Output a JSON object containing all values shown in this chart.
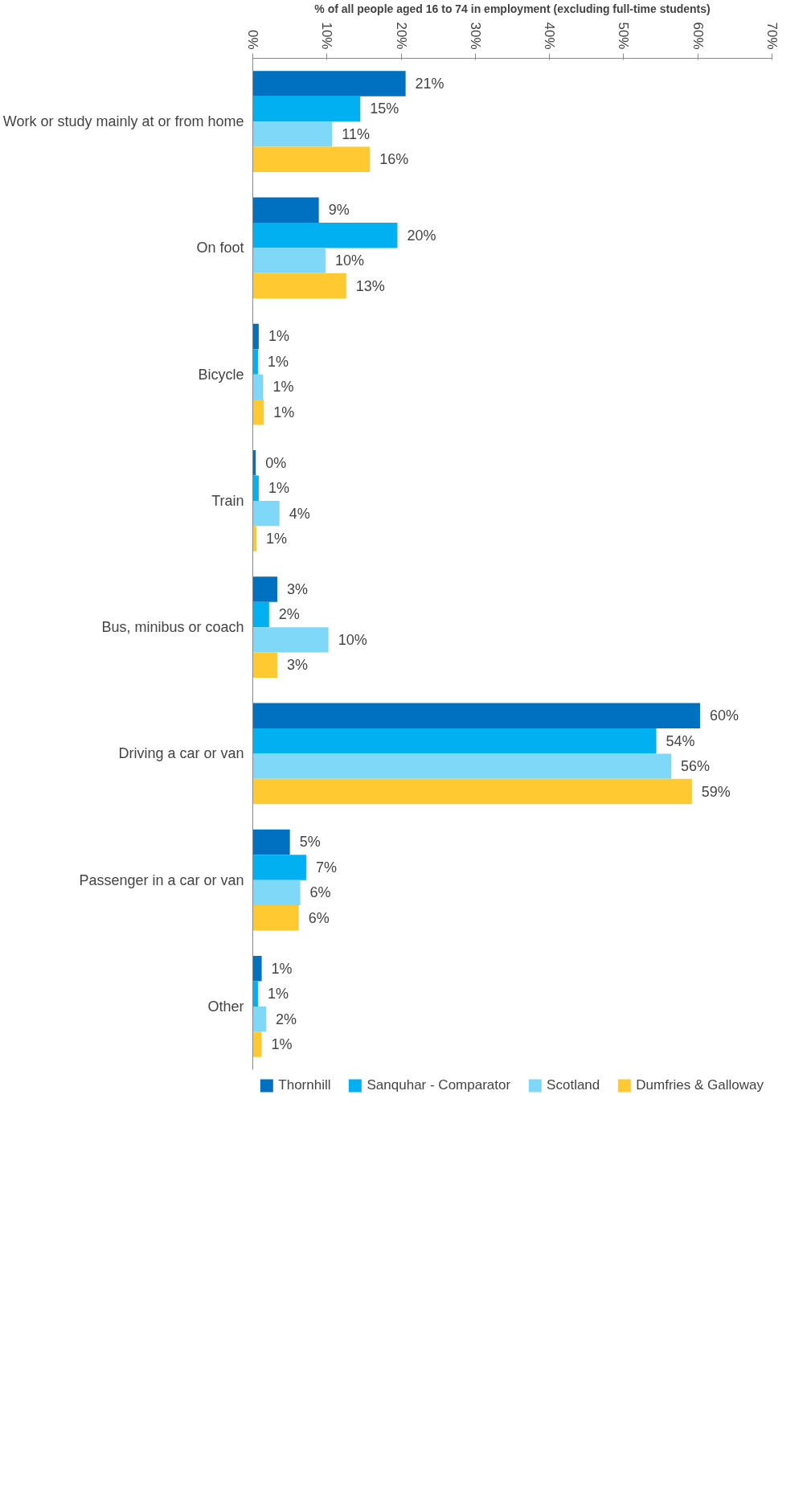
{
  "chart_data": {
    "type": "bar",
    "orientation": "horizontal",
    "xlabel": "% of all people aged 16 to 74 in employment (excluding full-time students)",
    "categories": [
      "Work or study mainly at or from home",
      "On foot",
      "Bicycle",
      "Train",
      "Bus, minibus or coach",
      "Driving a car or van",
      "Passenger in a car or van",
      "Other"
    ],
    "series": [
      {
        "name": "Thornhill",
        "color": "#0070c0",
        "values": [
          20.6,
          8.9,
          0.8,
          0.4,
          3.3,
          60.3,
          5.0,
          1.2
        ],
        "value_labels": [
          "21%",
          "9%",
          "1%",
          "0%",
          "3%",
          "60%",
          "5%",
          "1%"
        ]
      },
      {
        "name": "Sanquhar - Comparator",
        "color": "#00b0f0",
        "values": [
          14.5,
          19.5,
          0.7,
          0.8,
          2.2,
          54.4,
          7.2,
          0.7
        ],
        "value_labels": [
          "15%",
          "20%",
          "1%",
          "1%",
          "2%",
          "54%",
          "7%",
          "1%"
        ]
      },
      {
        "name": "Scotland",
        "color": "#80d8f8",
        "values": [
          10.7,
          9.8,
          1.4,
          3.6,
          10.2,
          56.4,
          6.4,
          1.8
        ],
        "value_labels": [
          "11%",
          "10%",
          "1%",
          "4%",
          "10%",
          "56%",
          "6%",
          "2%"
        ]
      },
      {
        "name": "Dumfries & Galloway",
        "color": "#ffc932",
        "values": [
          15.8,
          12.6,
          1.5,
          0.5,
          3.3,
          59.2,
          6.2,
          1.2
        ],
        "value_labels": [
          "16%",
          "13%",
          "1%",
          "1%",
          "3%",
          "59%",
          "6%",
          "1%"
        ]
      }
    ],
    "xlim": [
      0,
      70
    ],
    "xticks": [
      {
        "value": 0,
        "label": "0%"
      },
      {
        "value": 10,
        "label": "10%"
      },
      {
        "value": 20,
        "label": "20%"
      },
      {
        "value": 30,
        "label": "30%"
      },
      {
        "value": 40,
        "label": "40%"
      },
      {
        "value": 50,
        "label": "50%"
      },
      {
        "value": 60,
        "label": "60%"
      },
      {
        "value": 70,
        "label": "70%"
      }
    ],
    "grid": false,
    "legend": "bottom"
  }
}
